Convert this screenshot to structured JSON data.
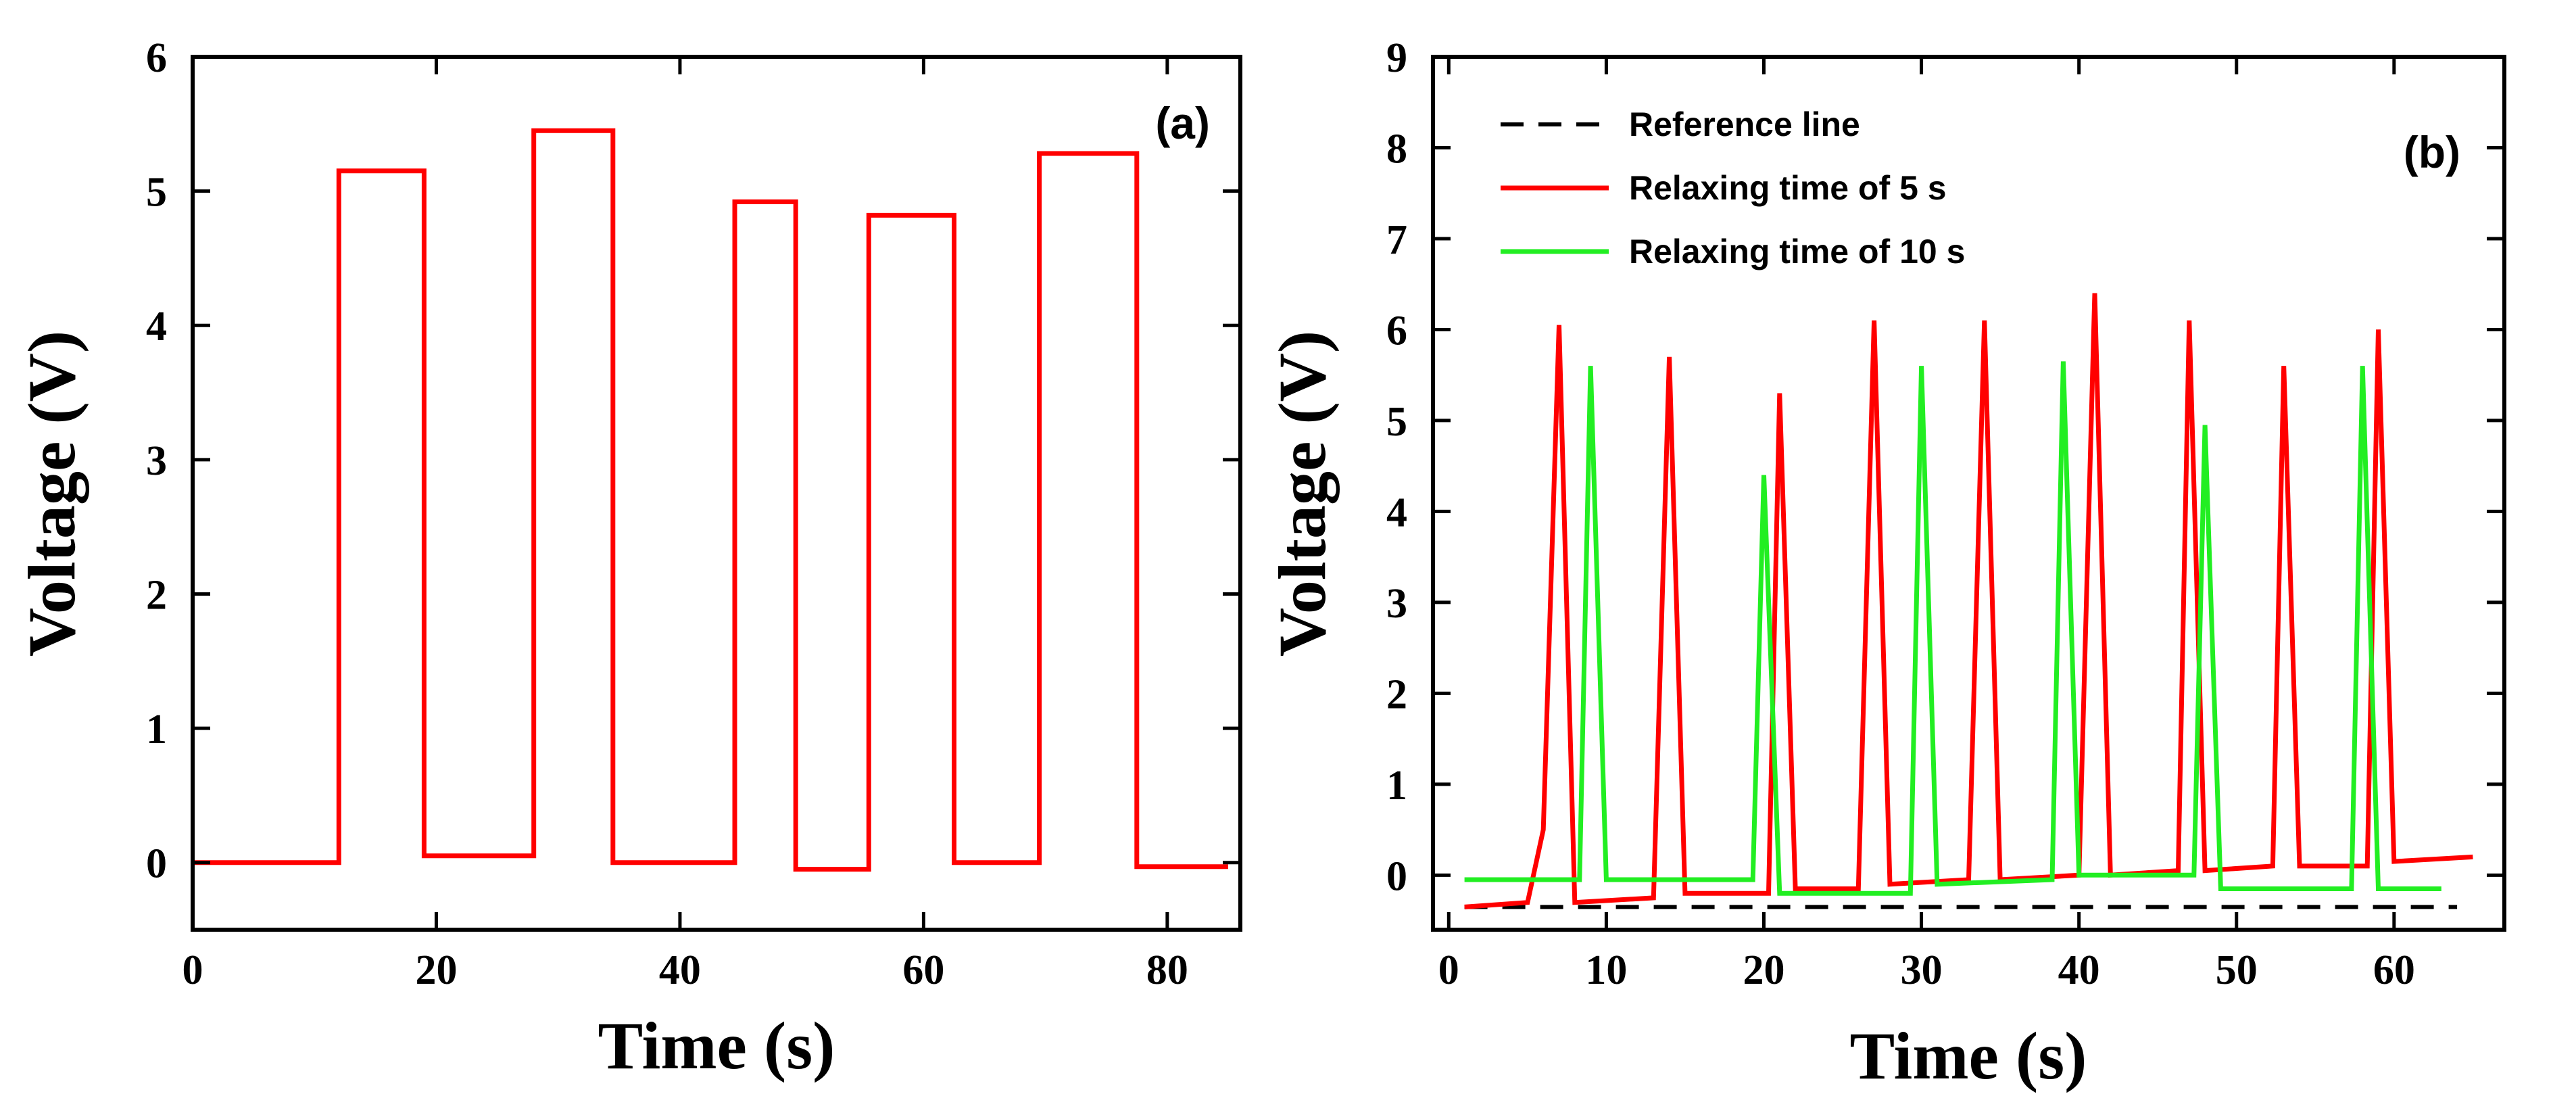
{
  "chart_data": [
    {
      "type": "line",
      "panel_label": "(a)",
      "xlabel": "Time (s)",
      "ylabel": "Voltage (V)",
      "xlim": [
        0,
        86
      ],
      "ylim": [
        -0.5,
        6
      ],
      "xticks": [
        0,
        20,
        40,
        60,
        80
      ],
      "yticks": [
        0,
        1,
        2,
        3,
        4,
        5,
        6
      ],
      "grid": false,
      "series": [
        {
          "color": "#ff0000",
          "x": [
            0,
            12,
            12,
            19,
            19,
            28,
            28,
            34.5,
            34.5,
            44.5,
            44.5,
            49.5,
            49.5,
            55.5,
            55.5,
            62.5,
            62.5,
            69.5,
            69.5,
            77.5,
            77.5,
            85
          ],
          "y": [
            0,
            0,
            5.15,
            5.15,
            0.05,
            0.05,
            5.45,
            5.45,
            0,
            0,
            4.92,
            4.92,
            -0.05,
            -0.05,
            4.82,
            4.82,
            0,
            0,
            5.28,
            5.28,
            -0.03,
            -0.03
          ]
        }
      ]
    },
    {
      "type": "line",
      "panel_label": "(b)",
      "xlabel": "Time (s)",
      "ylabel": "Voltage (V)",
      "xlim": [
        -1,
        67
      ],
      "ylim": [
        -0.6,
        9
      ],
      "xticks": [
        0,
        10,
        20,
        30,
        40,
        50,
        60
      ],
      "yticks": [
        0,
        1,
        2,
        3,
        4,
        5,
        6,
        7,
        8,
        9
      ],
      "grid": false,
      "legend_position": "top-left",
      "series": [
        {
          "name": "Reference line",
          "color": "#000000",
          "dashed": true,
          "x": [
            1,
            64
          ],
          "y": [
            -0.35,
            -0.35
          ]
        },
        {
          "name": "Relaxing time of 5 s",
          "color": "#ff0000",
          "x": [
            1,
            5,
            6,
            7,
            8,
            13,
            14,
            15,
            20.3,
            21,
            22,
            26,
            27,
            28,
            33,
            34,
            35,
            40,
            41,
            42,
            46.3,
            47,
            48,
            52.3,
            53,
            54,
            58.3,
            59,
            60,
            65
          ],
          "y": [
            -0.35,
            -0.3,
            0.5,
            6.05,
            -0.3,
            -0.25,
            5.7,
            -0.2,
            -0.2,
            5.3,
            -0.15,
            -0.15,
            6.1,
            -0.1,
            -0.05,
            6.1,
            -0.05,
            0,
            6.4,
            0,
            0.05,
            6.1,
            0.05,
            0.1,
            5.6,
            0.1,
            0.1,
            6.0,
            0.15,
            0.2
          ]
        },
        {
          "name": "Relaxing time of 10 s",
          "color": "#22ee22",
          "x": [
            1,
            8.3,
            9,
            10,
            19.3,
            20,
            21,
            29.3,
            30,
            31,
            38.3,
            39,
            40,
            47.3,
            48,
            49,
            57.3,
            58,
            59,
            63
          ],
          "y": [
            -0.05,
            -0.05,
            5.6,
            -0.05,
            -0.05,
            4.4,
            -0.2,
            -0.2,
            5.6,
            -0.1,
            -0.05,
            5.65,
            0,
            0,
            4.95,
            -0.15,
            -0.15,
            5.6,
            -0.15,
            -0.15
          ]
        }
      ]
    }
  ]
}
